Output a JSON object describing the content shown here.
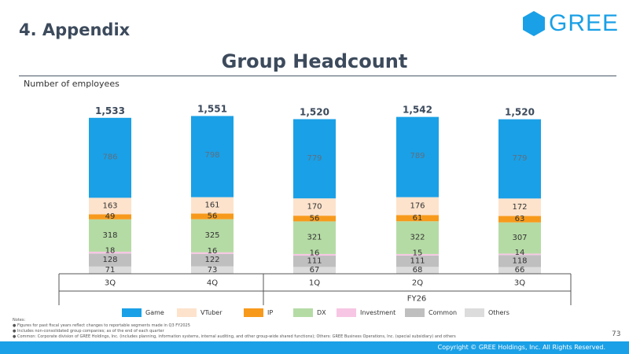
{
  "header": {
    "section_title": "4. Appendix",
    "logo_text": "GREE"
  },
  "page_heading": "Group Headcount",
  "unit_label": "Number of employees",
  "colors": {
    "accent": "#1aa0e6",
    "Game": "#1aa0e6",
    "VTuber": "#fde3cc",
    "IP": "#f79a1c",
    "DX": "#b5dba5",
    "Investment": "#f7c6e4",
    "Common": "#bfbfbf",
    "Others": "#dcdcdc"
  },
  "legend": [
    "Game",
    "VTuber",
    "IP",
    "DX",
    "Investment",
    "Common",
    "Others"
  ],
  "chart_data": {
    "type": "bar",
    "stacked": true,
    "categories": [
      "3Q",
      "4Q",
      "1Q",
      "2Q",
      "3Q"
    ],
    "group_label": "FY26",
    "totals": [
      "1,533",
      "1,551",
      "1,520",
      "1,542",
      "1,520"
    ],
    "series": [
      {
        "name": "Others",
        "values": [
          71,
          73,
          67,
          68,
          66
        ]
      },
      {
        "name": "Common",
        "values": [
          128,
          122,
          111,
          111,
          118
        ]
      },
      {
        "name": "Investment",
        "values": [
          18,
          16,
          16,
          15,
          14
        ]
      },
      {
        "name": "DX",
        "values": [
          318,
          325,
          321,
          322,
          307
        ]
      },
      {
        "name": "IP",
        "values": [
          49,
          56,
          56,
          61,
          63
        ]
      },
      {
        "name": "VTuber",
        "values": [
          163,
          161,
          170,
          176,
          172
        ]
      },
      {
        "name": "Game",
        "values": [
          786,
          798,
          779,
          789,
          779
        ]
      }
    ],
    "legend_position": "bottom",
    "grid": false
  },
  "notes": {
    "title": "Notes:",
    "items": [
      "Figures for past fiscal years reflect changes to reportable segments made in Q3 FY2025",
      "Includes non-consolidated group companies; as of the end of each quarter",
      "Common: Corporate division of GREE Holdings, Inc. (includes planning, information systems, internal auditing, and other group-wide shared functions); Others: GREE Business Operations, Inc. (special subsidiary) and others"
    ]
  },
  "page_number": "73",
  "footer": "Copyright © GREE Holdings, Inc. All Rights Reserved."
}
